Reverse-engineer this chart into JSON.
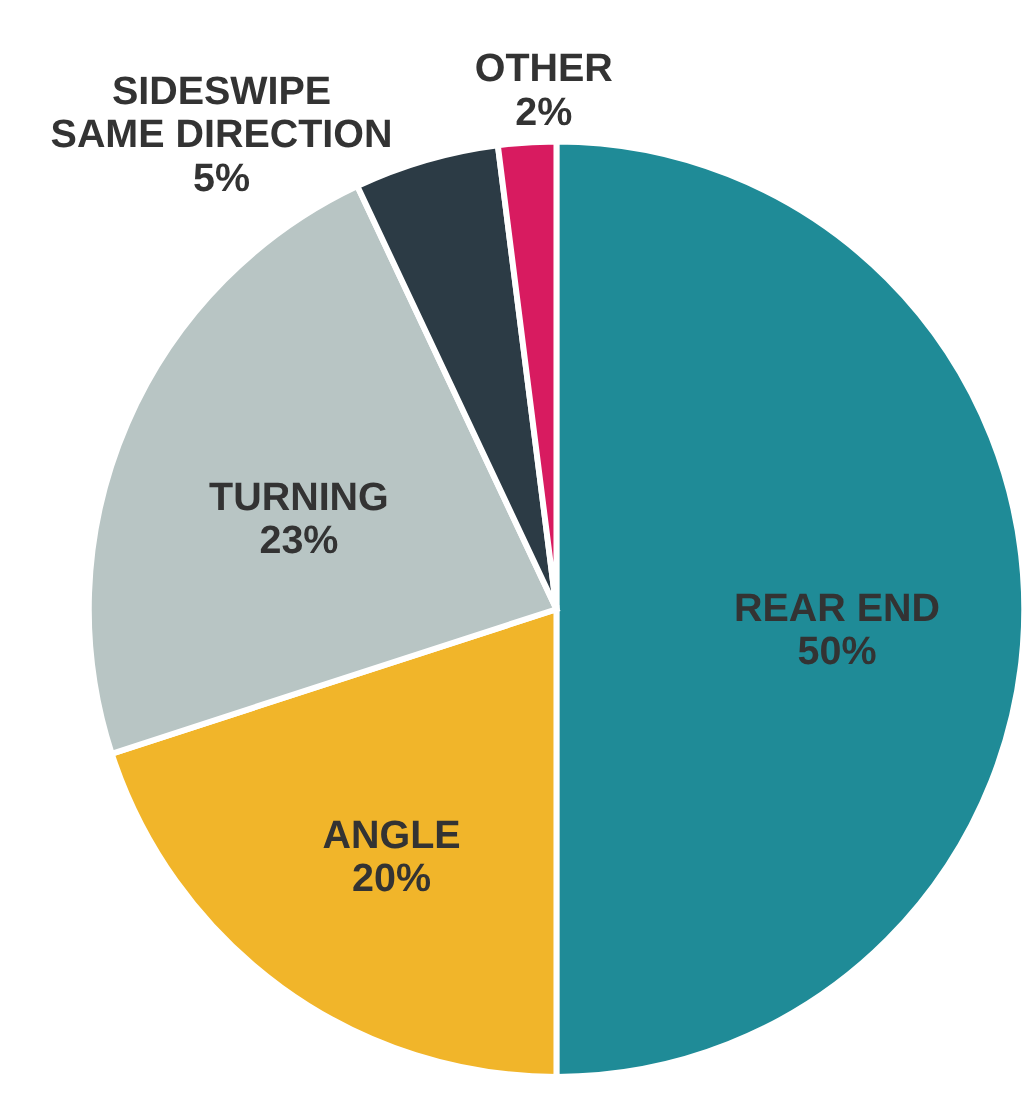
{
  "chart_data": {
    "type": "pie",
    "categories": [
      "REAR END",
      "ANGLE",
      "TURNING",
      "SIDESWIPE SAME DIRECTION",
      "OTHER"
    ],
    "values": [
      50,
      20,
      23,
      5,
      2
    ],
    "colors": [
      "#1f8b97",
      "#f1b52a",
      "#b8c5c4",
      "#2c3b45",
      "#d81b60"
    ],
    "value_labels": [
      "50%",
      "20%",
      "23%",
      "5%",
      "2%"
    ],
    "legend": false
  }
}
